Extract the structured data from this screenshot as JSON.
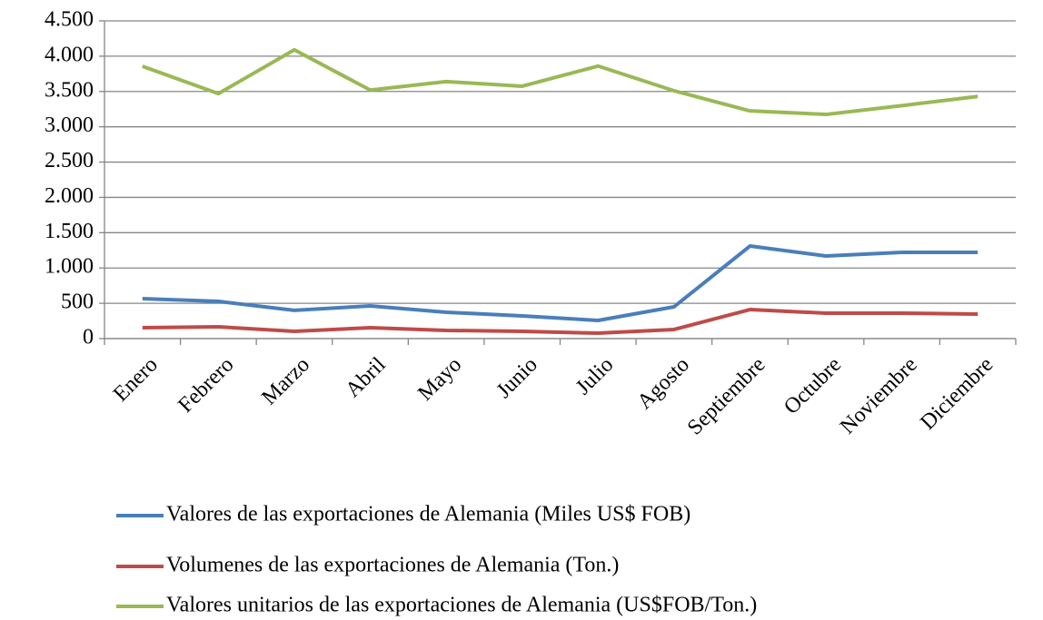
{
  "chart_data": {
    "type": "line",
    "categories": [
      "Enero",
      "Febrero",
      "Marzo",
      "Abril",
      "Mayo",
      "Junio",
      "Julio",
      "Agosto",
      "Septiembre",
      "Octubre",
      "Noviembre",
      "Diciembre"
    ],
    "series": [
      {
        "name": "Valores de las exportaciones de Alemania (Miles US$ FOB)",
        "color": "#4a7ebb",
        "values": [
          565,
          527,
          400,
          463,
          373,
          321,
          257,
          450,
          1311,
          1170,
          1221,
          1221
        ]
      },
      {
        "name": "Volumenes de las exportaciones de Alemania (Ton.)",
        "color": "#be4b48",
        "values": [
          154,
          167,
          103,
          154,
          116,
          103,
          77,
          129,
          411,
          360,
          360,
          347
        ]
      },
      {
        "name": "Valores unitarios de las exportaciones de Alemania (US$FOB/Ton.)",
        "color": "#98b954",
        "values": [
          3857,
          3470,
          4090,
          3520,
          3640,
          3575,
          3860,
          3510,
          3225,
          3175,
          3300,
          3430
        ]
      }
    ],
    "ylim": [
      0,
      4500
    ],
    "yticks": [
      0,
      500,
      {
        "value": 1000,
        "label": "1.000"
      },
      {
        "value": 1500,
        "label": "1.500"
      },
      {
        "value": 2000,
        "label": "2.000"
      },
      {
        "value": 2500,
        "label": "2.500"
      },
      {
        "value": 3000,
        "label": "3.000"
      },
      {
        "value": 3500,
        "label": "3.500"
      },
      {
        "value": 4000,
        "label": "4.000"
      },
      {
        "value": 4500,
        "label": "4.500"
      }
    ],
    "grid": true,
    "legend": "bottom"
  }
}
